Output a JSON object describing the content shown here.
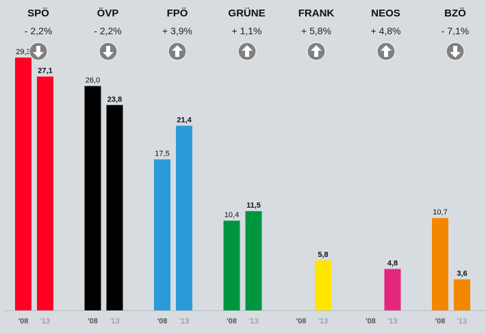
{
  "chart_data": {
    "type": "bar",
    "ylim": [
      0,
      32
    ],
    "years": [
      "'08",
      "'13"
    ],
    "parties": [
      {
        "name": "SPÖ",
        "change": "- 2,2%",
        "direction": "down",
        "color": "#ff0024",
        "v08": 29.3,
        "v13": 27.1,
        "l08": "29,3",
        "l13": "27,1"
      },
      {
        "name": "ÖVP",
        "change": "- 2,2%",
        "direction": "down",
        "color": "#000000",
        "v08": 26.0,
        "v13": 23.8,
        "l08": "26,0",
        "l13": "23,8"
      },
      {
        "name": "FPÖ",
        "change": "+ 3,9%",
        "direction": "up",
        "color": "#2b9ad9",
        "v08": 17.5,
        "v13": 21.4,
        "l08": "17,5",
        "l13": "21,4"
      },
      {
        "name": "GRÜNE",
        "change": "+ 1,1%",
        "direction": "up",
        "color": "#00963f",
        "v08": 10.4,
        "v13": 11.5,
        "l08": "10,4",
        "l13": "11,5"
      },
      {
        "name": "FRANK",
        "change": "+ 5,8%",
        "direction": "up",
        "color": "#ffe600",
        "v08": null,
        "v13": 5.8,
        "l08": "",
        "l13": "5,8"
      },
      {
        "name": "NEOS",
        "change": "+ 4,8%",
        "direction": "up",
        "color": "#e4267c",
        "v08": null,
        "v13": 4.8,
        "l08": "",
        "l13": "4,8"
      },
      {
        "name": "BZÖ",
        "change": "- 7,1%",
        "direction": "down",
        "color": "#f38800",
        "v08": 10.7,
        "v13": 3.6,
        "l08": "10,7",
        "l13": "3,6"
      }
    ]
  },
  "icon_colors": {
    "fill": "#808080",
    "arrow": "#ffffff"
  }
}
